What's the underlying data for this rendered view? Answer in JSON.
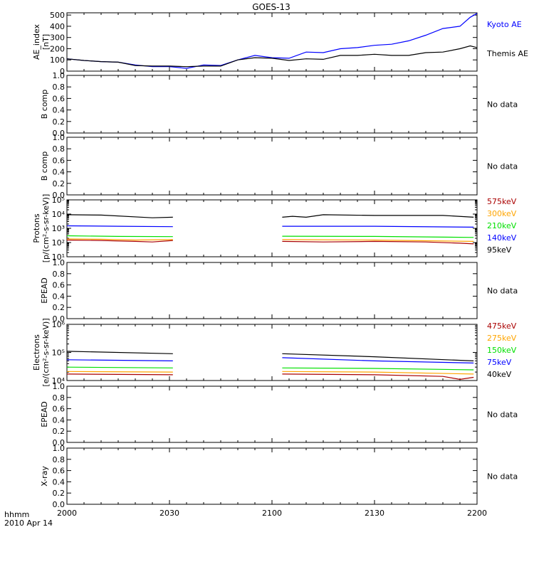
{
  "title": "GOES-13",
  "colors": {
    "axis": "#000000",
    "black": "#000000",
    "blue": "#0000ff",
    "green": "#00e000",
    "orange": "#ffa500",
    "red": "#ff0000",
    "darkred": "#aa0000"
  },
  "x_axis": {
    "time_label": "hhmm",
    "date_label": "2010 Apr 14",
    "tick_labels": [
      "2000",
      "2030",
      "2100",
      "2130",
      "2200"
    ]
  },
  "chart_data": [
    {
      "id": "ae",
      "type": "line",
      "ylabel": [
        "AE_index",
        "[nT]"
      ],
      "ylim": [
        0,
        520
      ],
      "yscale": "linear",
      "yticks": [
        0,
        100,
        200,
        300,
        400,
        500
      ],
      "ytick_labels": [
        "0",
        "100",
        "200",
        "300",
        "400",
        "500"
      ],
      "series": [
        {
          "name": "Kyoto AE",
          "color": "#0000ff",
          "x": [
            "2000",
            "2005",
            "2010",
            "2015",
            "2020",
            "2025",
            "2030",
            "2035",
            "2040",
            "2045",
            "2050",
            "2055",
            "2100",
            "2105",
            "2110",
            "2115",
            "2120",
            "2125",
            "2130",
            "2135",
            "2140",
            "2145",
            "2150",
            "2155",
            "2158",
            "2200"
          ],
          "y": [
            110,
            95,
            85,
            80,
            55,
            40,
            40,
            25,
            55,
            50,
            100,
            140,
            120,
            115,
            170,
            165,
            200,
            210,
            230,
            240,
            270,
            320,
            380,
            400,
            480,
            515
          ]
        },
        {
          "name": "Themis AE",
          "color": "#000000",
          "x": [
            "2000",
            "2005",
            "2010",
            "2015",
            "2020",
            "2025",
            "2030",
            "2035",
            "2040",
            "2045",
            "2050",
            "2055",
            "2100",
            "2105",
            "2110",
            "2115",
            "2120",
            "2125",
            "2130",
            "2135",
            "2140",
            "2145",
            "2150",
            "2155",
            "2158",
            "2200"
          ],
          "y": [
            110,
            95,
            85,
            80,
            50,
            45,
            45,
            40,
            45,
            45,
            100,
            120,
            115,
            95,
            110,
            105,
            140,
            140,
            150,
            140,
            140,
            165,
            170,
            200,
            225,
            210
          ]
        }
      ]
    },
    {
      "id": "bcomp1",
      "type": "line",
      "ylabel": [
        "B comp"
      ],
      "ylim": [
        0,
        1
      ],
      "yscale": "linear",
      "yticks": [
        0,
        0.2,
        0.4,
        0.6,
        0.8,
        1.0
      ],
      "ytick_labels": [
        "0.0",
        "0.2",
        "0.4",
        "0.6",
        "0.8",
        "1.0"
      ],
      "note": "No data",
      "series": []
    },
    {
      "id": "bcomp2",
      "type": "line",
      "ylabel": [
        "B comp"
      ],
      "ylim": [
        0,
        1
      ],
      "yscale": "linear",
      "yticks": [
        0,
        0.2,
        0.4,
        0.6,
        0.8,
        1.0
      ],
      "ytick_labels": [
        "0.0",
        "0.2",
        "0.4",
        "0.6",
        "0.8",
        "1.0"
      ],
      "note": "No data",
      "series": []
    },
    {
      "id": "protons",
      "type": "line",
      "ylabel": [
        "Protons",
        "[p/(cm²-s-sr-keV)]"
      ],
      "ylim": [
        10,
        100000
      ],
      "yscale": "log",
      "yticks": [
        10,
        100,
        1000,
        10000,
        100000
      ],
      "ytick_labels": [
        "10¹",
        "10²",
        "10³",
        "10⁴",
        "10⁵"
      ],
      "series": [
        {
          "name": "575keV",
          "color": "#aa0000",
          "segments": [
            {
              "x": [
                "2000",
                "2010",
                "2020",
                "2025",
                "2031"
              ],
              "y": [
                150,
                140,
                120,
                110,
                140
              ]
            },
            {
              "x": [
                "2103",
                "2115",
                "2130",
                "2145",
                "2155",
                "2159"
              ],
              "y": [
                120,
                110,
                120,
                110,
                90,
                80
              ]
            }
          ]
        },
        {
          "name": "300keV",
          "color": "#ffa500",
          "segments": [
            {
              "x": [
                "2000",
                "2010",
                "2020",
                "2031"
              ],
              "y": [
                180,
                170,
                150,
                160
              ]
            },
            {
              "x": [
                "2103",
                "2130",
                "2159"
              ],
              "y": [
                160,
                150,
                120
              ]
            }
          ]
        },
        {
          "name": "210keV",
          "color": "#00e000",
          "segments": [
            {
              "x": [
                "2000",
                "2015",
                "2031"
              ],
              "y": [
                300,
                270,
                260
              ]
            },
            {
              "x": [
                "2103",
                "2130",
                "2159"
              ],
              "y": [
                280,
                270,
                230
              ]
            }
          ]
        },
        {
          "name": "140keV",
          "color": "#0000ff",
          "segments": [
            {
              "x": [
                "2000",
                "2015",
                "2031"
              ],
              "y": [
                1500,
                1400,
                1300
              ]
            },
            {
              "x": [
                "2103",
                "2130",
                "2159"
              ],
              "y": [
                1400,
                1400,
                1200
              ]
            }
          ]
        },
        {
          "name": "95keV",
          "color": "#000000",
          "segments": [
            {
              "x": [
                "2000",
                "2010",
                "2025",
                "2031"
              ],
              "y": [
                9000,
                8500,
                5500,
                6000
              ]
            },
            {
              "x": [
                "2103",
                "2106",
                "2110",
                "2115",
                "2130",
                "2150",
                "2159"
              ],
              "y": [
                6000,
                7000,
                6000,
                9000,
                8000,
                8000,
                6000
              ]
            }
          ]
        }
      ]
    },
    {
      "id": "epead1",
      "type": "line",
      "ylabel": [
        "EPEAD"
      ],
      "ylim": [
        0,
        1
      ],
      "yscale": "linear",
      "yticks": [
        0,
        0.2,
        0.4,
        0.6,
        0.8,
        1.0
      ],
      "ytick_labels": [
        "0.0",
        "0.2",
        "0.4",
        "0.6",
        "0.8",
        "1.0"
      ],
      "note": "No data",
      "series": []
    },
    {
      "id": "electrons",
      "type": "line",
      "ylabel": [
        "Electrons",
        "[e/(cm²-s-sr-keV)]"
      ],
      "ylim": [
        10000,
        1000000
      ],
      "yscale": "log",
      "yticks": [
        10000,
        100000,
        1000000
      ],
      "ytick_labels": [
        "10⁴",
        "10⁵",
        "10⁶"
      ],
      "series": [
        {
          "name": "475keV",
          "color": "#aa0000",
          "segments": [
            {
              "x": [
                "2000",
                "2031"
              ],
              "y": [
                17000,
                16000
              ]
            },
            {
              "x": [
                "2103",
                "2130",
                "2150",
                "2155",
                "2159"
              ],
              "y": [
                17000,
                16000,
                14000,
                11000,
                13000
              ]
            }
          ]
        },
        {
          "name": "275keV",
          "color": "#ffa500",
          "segments": [
            {
              "x": [
                "2000",
                "2031"
              ],
              "y": [
                21000,
                20000
              ]
            },
            {
              "x": [
                "2103",
                "2130",
                "2159"
              ],
              "y": [
                21000,
                20000,
                17000
              ]
            }
          ]
        },
        {
          "name": "150keV",
          "color": "#00e000",
          "segments": [
            {
              "x": [
                "2000",
                "2031"
              ],
              "y": [
                30000,
                28000
              ]
            },
            {
              "x": [
                "2103",
                "2130",
                "2159"
              ],
              "y": [
                28000,
                27000,
                24000
              ]
            }
          ]
        },
        {
          "name": "75keV",
          "color": "#0000ff",
          "segments": [
            {
              "x": [
                "2000",
                "2031"
              ],
              "y": [
                55000,
                50000
              ]
            },
            {
              "x": [
                "2103",
                "2130",
                "2159"
              ],
              "y": [
                65000,
                50000,
                42000
              ]
            }
          ]
        },
        {
          "name": "40keV",
          "color": "#000000",
          "segments": [
            {
              "x": [
                "2000",
                "2031"
              ],
              "y": [
                110000,
                90000
              ]
            },
            {
              "x": [
                "2103",
                "2130",
                "2159"
              ],
              "y": [
                90000,
                70000,
                50000
              ]
            }
          ]
        }
      ]
    },
    {
      "id": "epead2",
      "type": "line",
      "ylabel": [
        "EPEAD"
      ],
      "ylim": [
        0,
        1
      ],
      "yscale": "linear",
      "yticks": [
        0,
        0.2,
        0.4,
        0.6,
        0.8,
        1.0
      ],
      "ytick_labels": [
        "0.0",
        "0.2",
        "0.4",
        "0.6",
        "0.8",
        "1.0"
      ],
      "note": "No data",
      "series": []
    },
    {
      "id": "xray",
      "type": "line",
      "ylabel": [
        "X-ray"
      ],
      "ylim": [
        0,
        1
      ],
      "yscale": "linear",
      "yticks": [
        0,
        0.2,
        0.4,
        0.6,
        0.8,
        1.0
      ],
      "ytick_labels": [
        "0.0",
        "0.2",
        "0.4",
        "0.6",
        "0.8",
        "1.0"
      ],
      "note": "No data",
      "series": []
    }
  ]
}
